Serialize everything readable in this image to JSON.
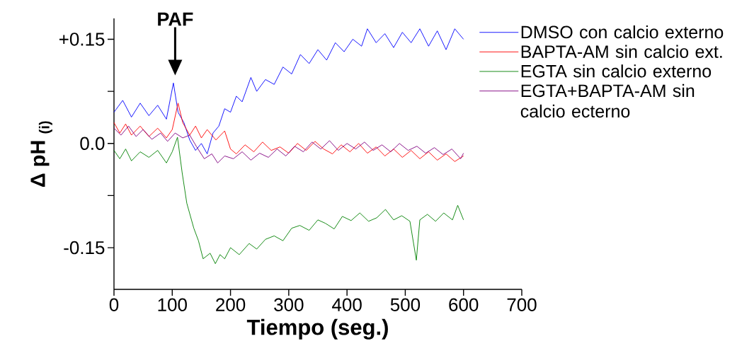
{
  "chart_data": {
    "type": "line",
    "xlabel": "Tiempo (seg.)",
    "ylabel": "Δ pH $_{(i)}$",
    "xlim": [
      0,
      700
    ],
    "ylim": [
      -0.21,
      0.18
    ],
    "xticks": [
      0,
      100,
      200,
      300,
      400,
      500,
      600,
      700
    ],
    "yticks": [
      {
        "value": -0.15,
        "label": "-0.15"
      },
      {
        "value": -0.075,
        "label": null
      },
      {
        "value": 0,
        "label": "0.0"
      },
      {
        "value": 0.075,
        "label": null
      },
      {
        "value": 0.15,
        "label": "+0.15"
      }
    ],
    "legend": "top right",
    "annotations": [
      "PAF"
    ],
    "series": [
      {
        "name": "DMSO con calcio externo",
        "color": "#0000ff",
        "x": [
          0,
          15,
          30,
          45,
          60,
          75,
          90,
          102,
          110,
          120,
          130,
          140,
          150,
          160,
          170,
          180,
          190,
          200,
          210,
          220,
          235,
          245,
          260,
          275,
          290,
          305,
          320,
          335,
          350,
          365,
          380,
          395,
          410,
          425,
          435,
          450,
          465,
          480,
          495,
          510,
          525,
          540,
          555,
          570,
          585,
          600
        ],
        "values": [
          0.045,
          0.062,
          0.038,
          0.058,
          0.04,
          0.055,
          0.035,
          0.087,
          0.045,
          0.03,
          0.005,
          -0.01,
          0.0,
          -0.015,
          0.015,
          0.025,
          0.05,
          0.045,
          0.068,
          0.06,
          0.095,
          0.075,
          0.092,
          0.085,
          0.11,
          0.1,
          0.128,
          0.115,
          0.135,
          0.12,
          0.145,
          0.132,
          0.15,
          0.14,
          0.165,
          0.145,
          0.158,
          0.138,
          0.16,
          0.145,
          0.165,
          0.14,
          0.162,
          0.135,
          0.165,
          0.15
        ]
      },
      {
        "name": "BAPTA-AM sin calcio ext.",
        "color": "#ff0000",
        "x": [
          0,
          10,
          20,
          30,
          45,
          60,
          75,
          90,
          100,
          110,
          118,
          130,
          140,
          150,
          160,
          175,
          190,
          200,
          210,
          225,
          240,
          255,
          270,
          285,
          300,
          315,
          330,
          345,
          360,
          375,
          390,
          405,
          420,
          435,
          450,
          465,
          480,
          495,
          510,
          525,
          540,
          555,
          570,
          585,
          600
        ],
        "values": [
          0.03,
          0.015,
          0.028,
          0.012,
          0.025,
          0.01,
          0.022,
          0.008,
          0.02,
          0.058,
          0.03,
          0.012,
          0.025,
          0.008,
          0.02,
          0.005,
          0.018,
          -0.008,
          -0.015,
          -0.002,
          -0.012,
          0.002,
          -0.01,
          -0.005,
          -0.014,
          0.0,
          -0.01,
          0.003,
          -0.008,
          -0.015,
          -0.002,
          -0.012,
          0.0,
          -0.014,
          -0.005,
          -0.018,
          -0.008,
          -0.02,
          -0.01,
          -0.022,
          -0.012,
          -0.024,
          -0.015,
          -0.026,
          -0.018
        ]
      },
      {
        "name": "EGTA sin calcio externo",
        "color": "#008000",
        "x": [
          0,
          10,
          20,
          30,
          45,
          60,
          75,
          90,
          100,
          109,
          117,
          125,
          137,
          145,
          153,
          165,
          174,
          182,
          190,
          200,
          215,
          232,
          245,
          260,
          275,
          290,
          305,
          319,
          335,
          350,
          363,
          378,
          392,
          407,
          422,
          437,
          451,
          466,
          480,
          494,
          508,
          519,
          525,
          538,
          552,
          566,
          581,
          590,
          600
        ],
        "values": [
          -0.01,
          -0.022,
          -0.008,
          -0.025,
          -0.012,
          -0.02,
          -0.01,
          -0.028,
          -0.012,
          0.009,
          -0.042,
          -0.086,
          -0.122,
          -0.14,
          -0.166,
          -0.158,
          -0.173,
          -0.16,
          -0.166,
          -0.15,
          -0.16,
          -0.144,
          -0.152,
          -0.138,
          -0.133,
          -0.14,
          -0.122,
          -0.118,
          -0.125,
          -0.11,
          -0.115,
          -0.123,
          -0.105,
          -0.111,
          -0.1,
          -0.112,
          -0.107,
          -0.095,
          -0.11,
          -0.104,
          -0.112,
          -0.168,
          -0.11,
          -0.102,
          -0.112,
          -0.1,
          -0.11,
          -0.089,
          -0.11
        ]
      },
      {
        "name": "EGTA+BAPTA-AM sin calcio ecterno",
        "color": "#800080",
        "x": [
          0,
          12,
          25,
          38,
          50,
          65,
          80,
          92,
          105,
          118,
          130,
          142,
          155,
          168,
          178,
          190,
          205,
          220,
          235,
          250,
          265,
          280,
          295,
          310,
          325,
          340,
          355,
          370,
          385,
          400,
          415,
          430,
          445,
          460,
          475,
          490,
          505,
          520,
          535,
          550,
          565,
          580,
          595,
          600
        ],
        "values": [
          0.022,
          0.012,
          0.025,
          0.01,
          0.02,
          0.006,
          0.015,
          0.003,
          0.015,
          0.008,
          0.012,
          -0.005,
          -0.022,
          -0.015,
          -0.028,
          -0.018,
          -0.022,
          -0.012,
          -0.024,
          -0.014,
          -0.02,
          -0.008,
          -0.018,
          -0.004,
          -0.012,
          0.002,
          -0.008,
          0.004,
          -0.01,
          0.0,
          -0.008,
          0.002,
          -0.01,
          -0.002,
          -0.012,
          0.0,
          -0.01,
          -0.004,
          -0.014,
          -0.006,
          -0.016,
          -0.008,
          -0.022,
          -0.014
        ]
      }
    ]
  }
}
